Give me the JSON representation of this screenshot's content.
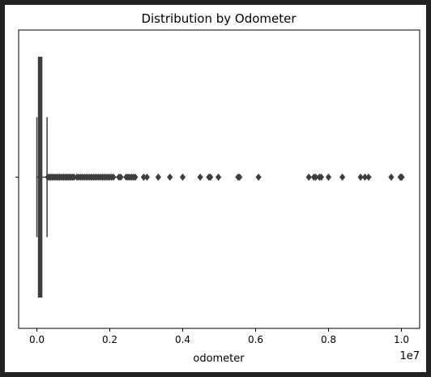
{
  "chart_data": {
    "type": "box",
    "title": "Distribution by Odometer",
    "xlabel": "odometer",
    "ylabel": "",
    "offset_label": "1e7",
    "orientation": "horizontal",
    "xlim": [
      -0.05,
      1.05
    ],
    "x_ticks": [
      0.0,
      0.2,
      0.4,
      0.6,
      0.8,
      1.0
    ],
    "x_tick_labels": [
      "0.0",
      "0.2",
      "0.4",
      "0.6",
      "0.8",
      "1.0"
    ],
    "grid": false,
    "box": {
      "whisker_low": 0.0,
      "q1": 0.004,
      "median": 0.009,
      "q3": 0.014,
      "whisker_high": 0.028
    },
    "outliers": [
      0.03,
      0.034,
      0.038,
      0.042,
      0.046,
      0.05,
      0.054,
      0.058,
      0.062,
      0.066,
      0.07,
      0.074,
      0.078,
      0.082,
      0.086,
      0.09,
      0.094,
      0.098,
      0.102,
      0.11,
      0.115,
      0.12,
      0.125,
      0.13,
      0.135,
      0.14,
      0.145,
      0.15,
      0.155,
      0.16,
      0.165,
      0.17,
      0.175,
      0.18,
      0.185,
      0.19,
      0.195,
      0.2,
      0.205,
      0.21,
      0.225,
      0.23,
      0.245,
      0.25,
      0.255,
      0.26,
      0.265,
      0.27,
      0.293,
      0.302,
      0.333,
      0.365,
      0.4,
      0.448,
      0.472,
      0.476,
      0.498,
      0.552,
      0.556,
      0.608,
      0.746,
      0.76,
      0.765,
      0.775,
      0.78,
      0.8,
      0.838,
      0.888,
      0.9,
      0.91,
      0.972,
      0.997,
      1.0,
      1.001
    ],
    "color": "#3d3d3d"
  }
}
